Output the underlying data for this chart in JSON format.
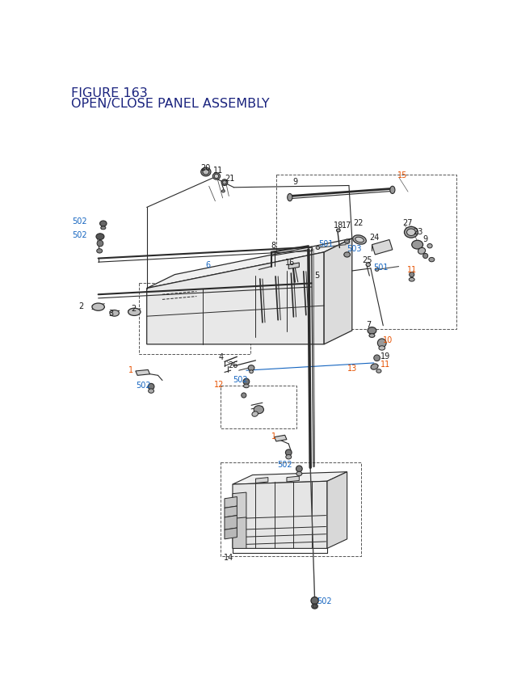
{
  "title_line1": "FIGURE 163",
  "title_line2": "OPEN/CLOSE PANEL ASSEMBLY",
  "title_color": "#1a237e",
  "title_fontsize": 11,
  "bg_color": "#ffffff",
  "line_color": "#2a2a2a",
  "blue": "#1565c0",
  "orange": "#e65100",
  "black": "#1a1a1a",
  "fig_width": 6.4,
  "fig_height": 8.62,
  "dpi": 100
}
